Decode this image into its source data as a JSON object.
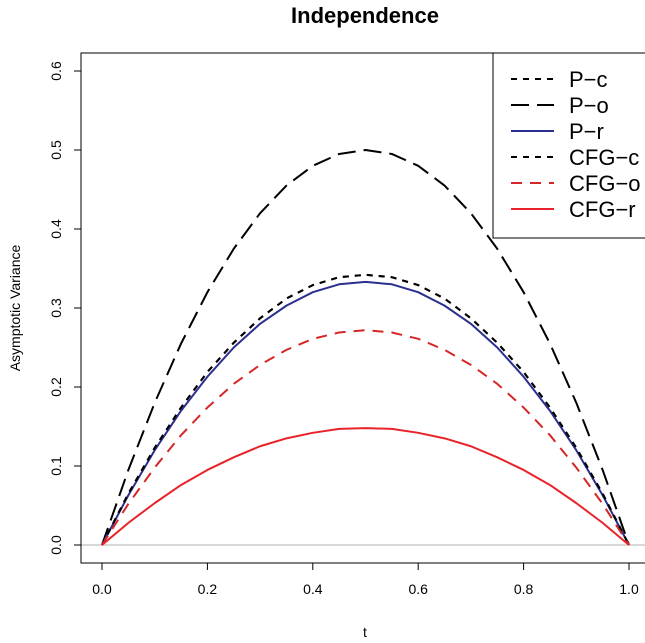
{
  "chart_data": {
    "type": "line",
    "title": "Independence",
    "xlabel": "t",
    "ylabel": "Asymptotic Variance",
    "xlim": [
      0,
      1
    ],
    "ylim": [
      0,
      0.6
    ],
    "x_ticks": [
      "0.0",
      "0.2",
      "0.4",
      "0.6",
      "0.8",
      "1.0"
    ],
    "y_ticks": [
      "0.0",
      "0.1",
      "0.2",
      "0.3",
      "0.4",
      "0.5",
      "0.6"
    ],
    "x": [
      0.0,
      0.05,
      0.1,
      0.15,
      0.2,
      0.25,
      0.3,
      0.35,
      0.4,
      0.45,
      0.5,
      0.55,
      0.6,
      0.65,
      0.7,
      0.75,
      0.8,
      0.85,
      0.9,
      0.95,
      1.0
    ],
    "reference_line_y": 0,
    "legend_position": "top-right",
    "series": [
      {
        "name": "P−c",
        "color": "#000000",
        "dash": "short",
        "values": [
          0.0,
          0.065,
          0.123,
          0.174,
          0.219,
          0.256,
          0.287,
          0.312,
          0.329,
          0.339,
          0.342,
          0.339,
          0.329,
          0.312,
          0.287,
          0.256,
          0.219,
          0.174,
          0.123,
          0.065,
          0.0
        ]
      },
      {
        "name": "P−o",
        "color": "#000000",
        "dash": "long",
        "values": [
          0.0,
          0.095,
          0.18,
          0.255,
          0.32,
          0.375,
          0.42,
          0.455,
          0.48,
          0.495,
          0.5,
          0.495,
          0.48,
          0.455,
          0.42,
          0.375,
          0.32,
          0.255,
          0.18,
          0.095,
          0.0
        ]
      },
      {
        "name": "P−r",
        "color": "#2b2f8f",
        "dash": "solid",
        "values": [
          0.0,
          0.063,
          0.12,
          0.17,
          0.213,
          0.25,
          0.28,
          0.303,
          0.32,
          0.33,
          0.333,
          0.33,
          0.32,
          0.303,
          0.28,
          0.25,
          0.213,
          0.17,
          0.12,
          0.063,
          0.0
        ]
      },
      {
        "name": "CFG−c",
        "color": "#000000",
        "dash": "short",
        "values": [
          0.0,
          0.065,
          0.123,
          0.174,
          0.219,
          0.256,
          0.287,
          0.312,
          0.329,
          0.339,
          0.342,
          0.339,
          0.329,
          0.312,
          0.287,
          0.256,
          0.219,
          0.174,
          0.123,
          0.065,
          0.0
        ]
      },
      {
        "name": "CFG−o",
        "color": "#d62728",
        "dash": "medium",
        "values": [
          0.0,
          0.052,
          0.098,
          0.139,
          0.174,
          0.204,
          0.228,
          0.247,
          0.261,
          0.269,
          0.272,
          0.269,
          0.261,
          0.247,
          0.228,
          0.204,
          0.174,
          0.139,
          0.098,
          0.052,
          0.0
        ]
      },
      {
        "name": "CFG−r",
        "color": "#e8232a",
        "dash": "solid",
        "values": [
          0.0,
          0.028,
          0.053,
          0.076,
          0.095,
          0.111,
          0.125,
          0.135,
          0.142,
          0.147,
          0.148,
          0.147,
          0.142,
          0.135,
          0.125,
          0.111,
          0.095,
          0.076,
          0.053,
          0.028,
          0.0
        ]
      }
    ]
  }
}
